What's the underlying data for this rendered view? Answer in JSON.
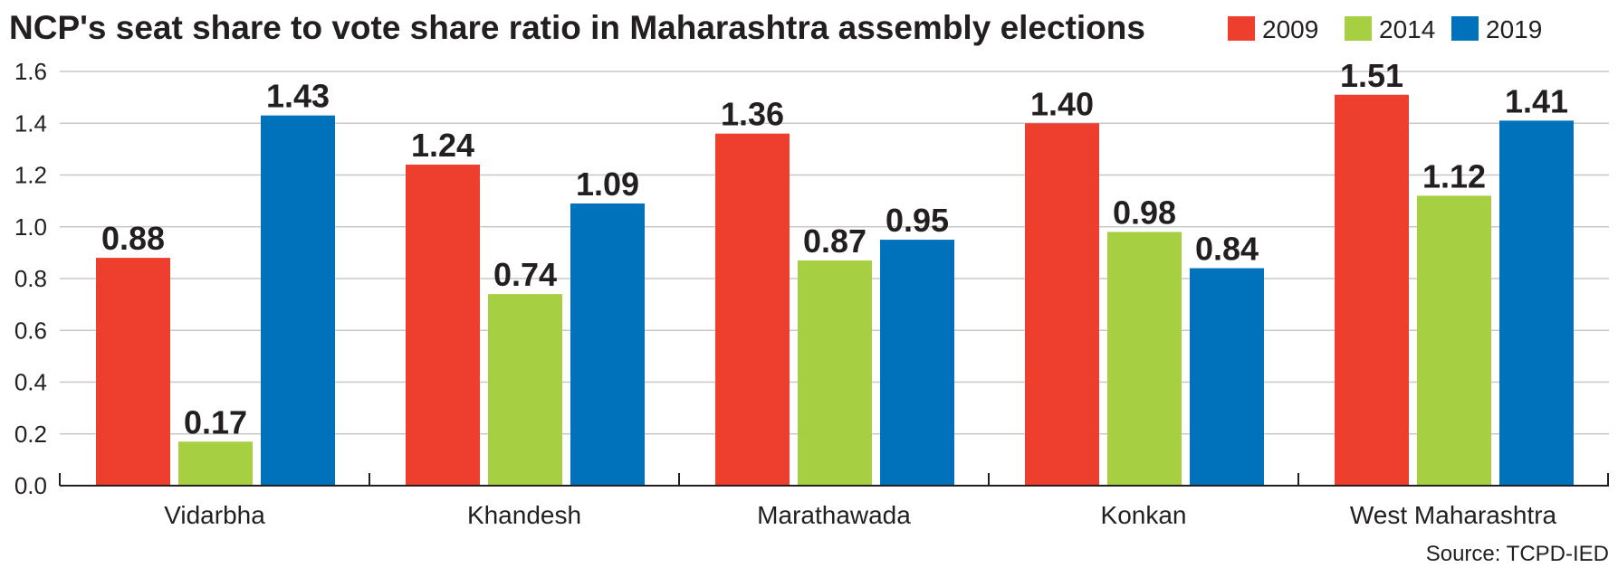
{
  "chart_data": {
    "type": "bar",
    "title": "NCP's seat share to vote share ratio in Maharashtra assembly elections",
    "xlabel": "",
    "ylabel": "",
    "categories": [
      "Vidarbha",
      "Khandesh",
      "Marathawada",
      "Konkan",
      "West Maharashtra"
    ],
    "series": [
      {
        "name": "2009",
        "color": "#ee3e2d",
        "values": [
          0.88,
          1.24,
          1.36,
          1.4,
          1.51
        ],
        "labels": [
          "0.88",
          "1.24",
          "1.36",
          "1.40",
          "1.51"
        ]
      },
      {
        "name": "2014",
        "color": "#a6cf41",
        "values": [
          0.17,
          0.74,
          0.87,
          0.98,
          1.12
        ],
        "labels": [
          "0.17",
          "0.74",
          "0.87",
          "0.98",
          "1.12"
        ]
      },
      {
        "name": "2019",
        "color": "#0072bb",
        "values": [
          1.43,
          1.09,
          0.95,
          0.84,
          1.41
        ],
        "labels": [
          "1.43",
          "1.09",
          "0.95",
          "0.84",
          "1.41"
        ]
      }
    ],
    "ylim": [
      0,
      1.6
    ],
    "yticks": [
      "0.0",
      "0.2",
      "0.4",
      "0.6",
      "0.8",
      "1.0",
      "1.2",
      "1.4",
      "1.6"
    ],
    "grid": true,
    "legend_position": "top-right",
    "source": "Source: TCPD-IED"
  }
}
